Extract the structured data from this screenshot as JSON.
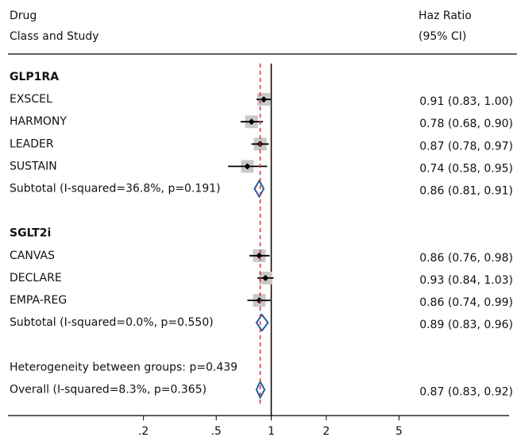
{
  "chart_data": {
    "type": "forest",
    "study_header": [
      "Drug",
      "Class and Study"
    ],
    "effect_header": [
      "Haz Ratio",
      "(95% CI)"
    ],
    "xscale": "log",
    "xlim": [
      0.037,
      20
    ],
    "xticks": [
      {
        "value": 0.2,
        "label": ".2"
      },
      {
        "value": 0.5,
        "label": ".5"
      },
      1,
      2,
      5
    ],
    "reference_line": 1,
    "point_color": "#000000",
    "box_color": "#c8c8c8",
    "diamond_color": "#1f5fa8",
    "overall_line_color": "#e0302a",
    "rows": [
      {
        "kind": "group",
        "label": "GLP1RA"
      },
      {
        "kind": "study",
        "label": "EXSCEL",
        "estimate": 0.91,
        "lower": 0.83,
        "upper": 1.0,
        "ci_label": "0.91 (0.83, 1.00)"
      },
      {
        "kind": "study",
        "label": "HARMONY",
        "estimate": 0.78,
        "lower": 0.68,
        "upper": 0.9,
        "ci_label": "0.78 (0.68, 0.90)"
      },
      {
        "kind": "study",
        "label": "LEADER",
        "estimate": 0.87,
        "lower": 0.78,
        "upper": 0.97,
        "ci_label": "0.87 (0.78, 0.97)"
      },
      {
        "kind": "study",
        "label": "SUSTAIN",
        "estimate": 0.74,
        "lower": 0.58,
        "upper": 0.95,
        "ci_label": "0.74 (0.58, 0.95)"
      },
      {
        "kind": "subtotal",
        "label": "Subtotal (I-squared=36.8%, p=0.191)",
        "estimate": 0.86,
        "lower": 0.81,
        "upper": 0.91,
        "ci_label": "0.86 (0.81, 0.91)"
      },
      {
        "kind": "group",
        "label": "SGLT2i"
      },
      {
        "kind": "study",
        "label": "CANVAS",
        "estimate": 0.86,
        "lower": 0.76,
        "upper": 0.98,
        "ci_label": "0.86 (0.76, 0.98)"
      },
      {
        "kind": "study",
        "label": "DECLARE",
        "estimate": 0.93,
        "lower": 0.84,
        "upper": 1.03,
        "ci_label": "0.93 (0.84, 1.03)"
      },
      {
        "kind": "study",
        "label": "EMPA-REG",
        "estimate": 0.86,
        "lower": 0.74,
        "upper": 0.99,
        "ci_label": "0.86 (0.74, 0.99)"
      },
      {
        "kind": "subtotal",
        "label": "Subtotal (I-squared=0.0%, p=0.550)",
        "estimate": 0.89,
        "lower": 0.83,
        "upper": 0.96,
        "ci_label": "0.89 (0.83, 0.96)"
      },
      {
        "kind": "note",
        "label": "Heterogeneity between groups: p=0.439"
      },
      {
        "kind": "overall",
        "label": "Overall (I-squared=8.3%, p=0.365)",
        "estimate": 0.87,
        "lower": 0.83,
        "upper": 0.92,
        "ci_label": "0.87 (0.83, 0.92)"
      }
    ]
  }
}
